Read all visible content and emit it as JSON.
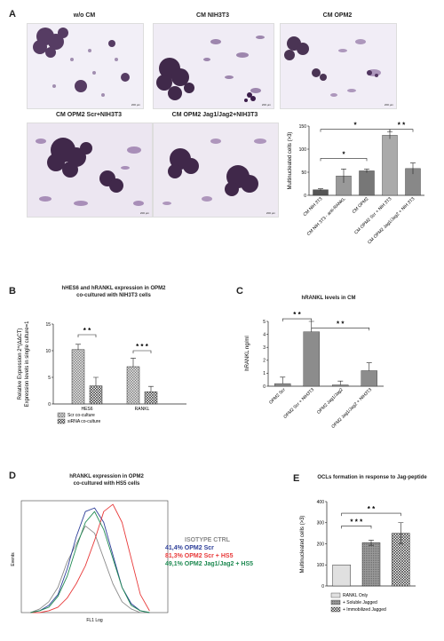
{
  "panelA": {
    "label": "A",
    "micrographs": [
      {
        "caption": "w/o CM",
        "scale": "200 μm"
      },
      {
        "caption": "CM NIH3T3",
        "scale": "200 μm"
      },
      {
        "caption": "CM OPM2",
        "scale": "200 μm"
      },
      {
        "caption": "CM OPM2 Scr+NIH3T3",
        "scale": "200 μm"
      },
      {
        "caption": "CM OPM2  Jag1/Jag2+NIH3T3",
        "scale": "200 μm"
      }
    ]
  },
  "panelB": {
    "label": "B",
    "title_line1": "hHES6 and hRANKL expression in OPM2",
    "title_line2": "co-cultured with NIH3T3 cells"
  },
  "panelC": {
    "label": "C",
    "title": "hRANKL levels in CM"
  },
  "panelD": {
    "label": "D",
    "title_line1": "hRANKL expression in OPM2",
    "title_line2": "co-cultured with HS5 cells"
  },
  "panelE": {
    "label": "E",
    "title": "OCLs formation in response to Jag-peptide"
  },
  "chart_data": [
    {
      "id": "A",
      "type": "bar",
      "categories": [
        "CM NIH 3T3",
        "CM NIH 3T3 - anti-RANKL",
        "CM OPM2",
        "CM OPM2 Scr + NIH 3T3",
        "CM OPM2 Jag1/Jag2 + NIH 3T3"
      ],
      "values": [
        12,
        42,
        53,
        130,
        58
      ],
      "errors": [
        2,
        15,
        4,
        8,
        12
      ],
      "ylabel": "Multinucleated cells (>3)",
      "ylim": [
        0,
        150
      ],
      "yticks": [
        0,
        50,
        100,
        150
      ],
      "significance": [
        {
          "from": 0,
          "to": 2,
          "label": "*"
        },
        {
          "from": 0,
          "to": 3,
          "label": "*"
        },
        {
          "from": 3,
          "to": 4,
          "label": "* *"
        }
      ]
    },
    {
      "id": "B",
      "type": "bar",
      "categories": [
        "HES6",
        "RANKL"
      ],
      "series": [
        {
          "name": "Scr co-culture",
          "values": [
            10.2,
            7.0
          ],
          "errors": [
            1.0,
            1.6
          ]
        },
        {
          "name": "siRNA co-culture",
          "values": [
            3.4,
            2.3
          ],
          "errors": [
            1.6,
            1.0
          ]
        }
      ],
      "ylabel_line1": "Relative Expression 2^(ΔΔCT)",
      "ylabel_line2": "Expression levels in single culture=1",
      "ylim": [
        0,
        15
      ],
      "yticks": [
        0,
        5,
        10,
        15
      ],
      "significance": [
        {
          "group": 0,
          "label": "* *"
        },
        {
          "group": 1,
          "label": "* * *"
        }
      ]
    },
    {
      "id": "C",
      "type": "bar",
      "categories": [
        "OPM2 Scr",
        "OPM2 Scr + NIH3T3",
        "OPM2 Jag1/Jag2",
        "OPM2 Jag1/Jag2 + NIH3T3"
      ],
      "values": [
        0.2,
        4.2,
        0.1,
        1.2
      ],
      "errors": [
        0.5,
        0.8,
        0.3,
        0.6
      ],
      "ylabel": "hRANKL ng/ml",
      "ylim": [
        0,
        5
      ],
      "yticks": [
        0,
        1,
        2,
        3,
        4,
        5
      ],
      "significance": [
        {
          "from": 0,
          "to": 1,
          "label": "* *"
        },
        {
          "from": 1,
          "to": 3,
          "label": "* *"
        }
      ]
    },
    {
      "id": "D",
      "type": "line",
      "xlabel": "FL1 Log",
      "ylabel": "Events",
      "series": [
        {
          "name": "ISOTYPE CTRL",
          "pct": "",
          "color": "#8a8a8a",
          "x": [
            0.5,
            1,
            1.5,
            2,
            2.5,
            3,
            3.5,
            4,
            4.5,
            5,
            5.5,
            6,
            6.5,
            7
          ],
          "y": [
            0,
            2,
            6,
            14,
            28,
            38,
            48,
            44,
            30,
            16,
            6,
            2,
            0,
            0
          ]
        },
        {
          "name": "OPM2 Scr",
          "pct": "41,4%",
          "color": "#2e3f99",
          "x": [
            0.5,
            1,
            1.5,
            2,
            2.5,
            3,
            3.5,
            4,
            4.5,
            5,
            5.5,
            6,
            6.5,
            7
          ],
          "y": [
            0,
            1,
            4,
            10,
            24,
            42,
            56,
            58,
            50,
            32,
            14,
            5,
            1,
            0
          ]
        },
        {
          "name": "OPM2 Scr + HS5",
          "pct": "81,3%",
          "color": "#e83a3a",
          "x": [
            0.5,
            1,
            1.5,
            2,
            2.5,
            3,
            3.5,
            4,
            4.5,
            5,
            5.5,
            6,
            6.5,
            7
          ],
          "y": [
            0,
            0,
            1,
            3,
            8,
            16,
            26,
            40,
            56,
            60,
            50,
            30,
            10,
            1
          ]
        },
        {
          "name": "OPM2 Jag1/Jag2 + HS5",
          "pct": "49,1%",
          "color": "#1f8a52",
          "x": [
            0.5,
            1,
            1.5,
            2,
            2.5,
            3,
            3.5,
            4,
            4.5,
            5,
            5.5,
            6,
            6.5,
            7
          ],
          "y": [
            0,
            1,
            3,
            9,
            20,
            36,
            50,
            56,
            46,
            30,
            14,
            4,
            1,
            0
          ]
        }
      ]
    },
    {
      "id": "E",
      "type": "bar",
      "categories": [
        "RANKL Only",
        "+ Soluble Jagged",
        "+ Immobilized Jagged"
      ],
      "values": [
        100,
        205,
        250
      ],
      "errors": [
        0,
        12,
        50
      ],
      "ylabel": "Multinucleated cells (>3)",
      "ylim": [
        0,
        400
      ],
      "yticks": [
        0,
        100,
        200,
        300,
        400
      ],
      "significance": [
        {
          "from": 0,
          "to": 1,
          "label": "* * *"
        },
        {
          "from": 0,
          "to": 2,
          "label": "* *"
        }
      ]
    }
  ]
}
